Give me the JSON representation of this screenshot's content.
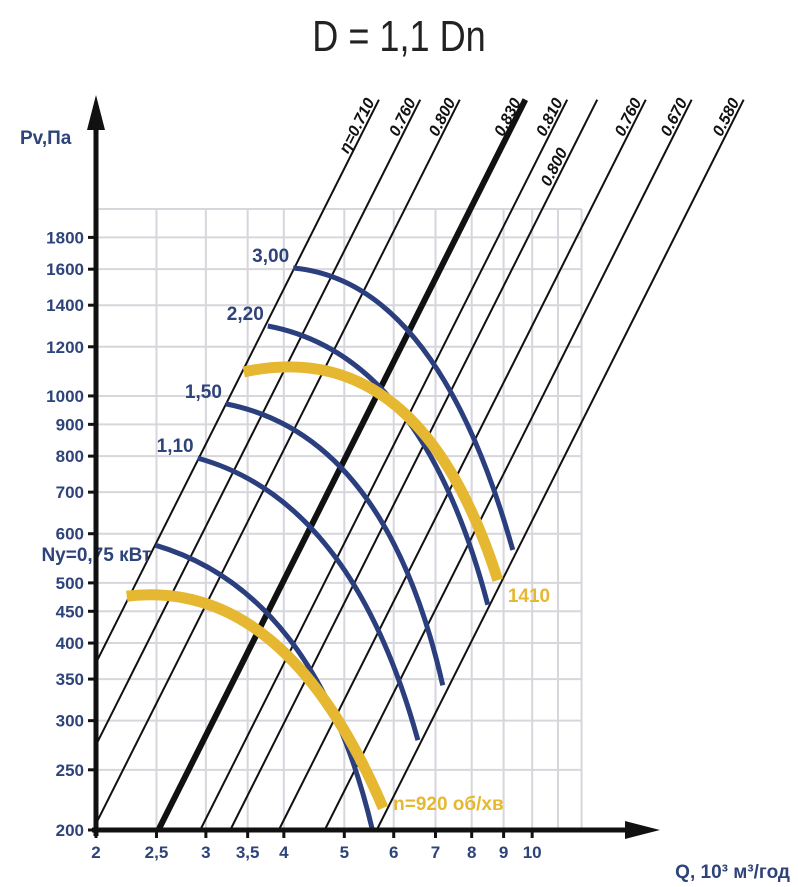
{
  "chart_data": {
    "type": "line",
    "title": "D = 1,1 Dn",
    "xlabel": "Q, 10³ м³/год",
    "ylabel": "Pv,Па",
    "xscale": "log",
    "yscale": "log",
    "xlim": [
      2,
      12
    ],
    "ylim": [
      200,
      2000
    ],
    "grid": true,
    "x_ticks": [
      2,
      2.5,
      3,
      3.5,
      4,
      5,
      6,
      7,
      8,
      9,
      10
    ],
    "x_tick_labels": [
      "2",
      "2,5",
      "3",
      "3,5",
      "4",
      "5",
      "6",
      "7",
      "8",
      "9",
      "10"
    ],
    "y_ticks": [
      200,
      250,
      300,
      350,
      400,
      450,
      500,
      600,
      700,
      800,
      900,
      1000,
      1200,
      1400,
      1600,
      1800
    ],
    "y_tick_labels": [
      "200",
      "250",
      "300",
      "350",
      "400",
      "450",
      "500",
      "600",
      "700",
      "800",
      "900",
      "1000",
      "1200",
      "1400",
      "1600",
      "1800"
    ],
    "efficiency_lines": {
      "note_relation": "P proportional to Q^2",
      "lines": [
        {
          "label": "η=0.710",
          "q_at_1000": 3.28,
          "bold": false
        },
        {
          "label": "0.760",
          "q_at_1000": 3.82,
          "bold": false
        },
        {
          "label": "0.800",
          "q_at_1000": 4.42,
          "bold": false
        },
        {
          "label": "0.830",
          "q_at_1000": 5.63,
          "bold": true
        },
        {
          "label": "0.810",
          "q_at_1000": 6.57,
          "bold": false
        },
        {
          "label": "0.800",
          "q_at_1000": 7.34,
          "bold": false
        },
        {
          "label": "0.760",
          "q_at_1000": 8.78,
          "bold": false
        },
        {
          "label": "0.670",
          "q_at_1000": 10.4,
          "bold": false
        },
        {
          "label": "0.580",
          "q_at_1000": 12.6,
          "bold": false
        }
      ]
    },
    "power_curves": [
      {
        "label": "Ny=0,75 кВт",
        "points": [
          [
            2.49,
            575
          ],
          [
            4.09,
            405
          ],
          [
            5.54,
            201
          ]
        ]
      },
      {
        "label": "1,10",
        "points": [
          [
            2.91,
            794
          ],
          [
            4.74,
            565
          ],
          [
            6.56,
            279
          ]
        ]
      },
      {
        "label": "1,50",
        "points": [
          [
            3.23,
            971
          ],
          [
            5.3,
            706
          ],
          [
            7.19,
            342
          ]
        ]
      },
      {
        "label": "2,20",
        "points": [
          [
            3.77,
            1296
          ],
          [
            6.14,
            949
          ],
          [
            8.49,
            461
          ]
        ]
      },
      {
        "label": "3,00",
        "points": [
          [
            4.14,
            1607
          ],
          [
            6.61,
            1208
          ],
          [
            9.31,
            565
          ]
        ]
      }
    ],
    "speed_curves": [
      {
        "label": "n=920 об/хв",
        "points": [
          [
            2.24,
            476
          ],
          [
            3.8,
            405
          ],
          [
            5.77,
            217
          ]
        ]
      },
      {
        "label": "1410",
        "points": [
          [
            3.45,
            1093
          ],
          [
            6.03,
            967
          ],
          [
            8.81,
            505
          ]
        ]
      }
    ],
    "colors": {
      "power": "#2b3f7e",
      "speed": "#e6b832",
      "axis": "#111111",
      "grid": "#d6d6dc",
      "text": "#2e4379"
    }
  }
}
